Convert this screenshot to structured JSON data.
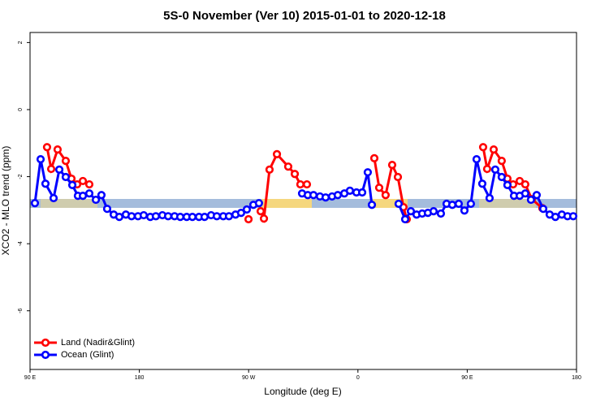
{
  "chart_data": {
    "type": "line",
    "title": "5S-0 November (Ver 10)   2015-01-01 to 2020-12-18",
    "x_label": "Longitude (deg E)",
    "y_label": "XCO2 - MLO trend (ppm)",
    "xlim": [
      90,
      540
    ],
    "xticks": [
      {
        "value": 90,
        "label": "90 E"
      },
      {
        "value": 180,
        "label": "180"
      },
      {
        "value": 270,
        "label": "90 W"
      },
      {
        "value": 360,
        "label": "0"
      },
      {
        "value": 450,
        "label": "90 E"
      },
      {
        "value": 540,
        "label": "180"
      }
    ],
    "ylim": [
      -7.75,
      2.3
    ],
    "yticks": [
      2,
      0,
      -2,
      -4,
      -6
    ],
    "legend": "bottom-left",
    "series": [
      {
        "name": "Land (Nadir&Glint)",
        "color": "#ff0000",
        "x": [
          104.0,
          107.4,
          112.7,
          119.4,
          124.1,
          128.8,
          133.5,
          138.8,
          null,
          269.9,
          null,
          279.9,
          282.6,
          287.2,
          293.3,
          302.6,
          308.0,
          312.6,
          318.0,
          null,
          373.5,
          377.5,
          382.8,
          388.2,
          392.9,
          397.5,
          400.2,
          null,
          463.1,
          466.4,
          471.8,
          478.4,
          483.1,
          487.8,
          493.2,
          497.8,
          503.2,
          511.9
        ],
        "values": [
          -1.12,
          -1.77,
          -1.19,
          -1.53,
          -2.06,
          -2.23,
          -2.13,
          -2.23,
          null,
          -3.27,
          null,
          -3.03,
          -3.25,
          -1.79,
          -1.33,
          -1.7,
          -1.92,
          -2.23,
          -2.23,
          null,
          -1.45,
          -2.33,
          -2.55,
          -1.65,
          -2.01,
          -2.91,
          -3.27,
          null,
          -1.12,
          -1.77,
          -1.19,
          -1.53,
          -2.06,
          -2.23,
          -2.13,
          -2.23,
          -2.67,
          -2.94
        ]
      },
      {
        "name": "Ocean (Glint)",
        "color": "#0000ff",
        "x": [
          94.0,
          98.7,
          102.7,
          109.4,
          114.1,
          119.4,
          124.8,
          129.4,
          133.5,
          138.8,
          144.2,
          148.8,
          153.5,
          158.9,
          163.5,
          168.9,
          173.6,
          178.9,
          183.6,
          189.0,
          193.6,
          199.0,
          203.7,
          209.0,
          213.7,
          219.0,
          223.7,
          229.1,
          233.7,
          239.1,
          243.8,
          249.1,
          253.8,
          259.2,
          263.8,
          268.5,
          273.9,
          278.5,
          null,
          314.0,
          318.7,
          323.4,
          328.7,
          333.4,
          338.7,
          343.4,
          348.8,
          353.4,
          358.8,
          363.5,
          368.1,
          371.5,
          null,
          393.5,
          398.9,
          403.6,
          408.3,
          412.9,
          417.6,
          422.3,
          428.3,
          433.0,
          437.7,
          443.0,
          447.7,
          453.0,
          457.7,
          462.4,
          468.4,
          473.1,
          478.4,
          483.1,
          488.5,
          493.2,
          497.8,
          502.5,
          507.2,
          512.6,
          517.9,
          522.6,
          527.9,
          532.6,
          537.3
        ],
        "values": [
          -2.79,
          -1.48,
          -2.21,
          -2.64,
          -1.79,
          -2.01,
          -2.25,
          -2.57,
          -2.57,
          -2.5,
          -2.69,
          -2.55,
          -2.96,
          -3.13,
          -3.2,
          -3.13,
          -3.18,
          -3.18,
          -3.15,
          -3.2,
          -3.18,
          -3.15,
          -3.18,
          -3.18,
          -3.2,
          -3.2,
          -3.2,
          -3.2,
          -3.2,
          -3.15,
          -3.18,
          -3.18,
          -3.18,
          -3.13,
          -3.08,
          -2.98,
          -2.84,
          -2.79,
          null,
          -2.5,
          -2.55,
          -2.55,
          -2.59,
          -2.62,
          -2.59,
          -2.55,
          -2.5,
          -2.42,
          -2.47,
          -2.47,
          -1.87,
          -2.84,
          null,
          -2.81,
          -3.27,
          -3.03,
          -3.13,
          -3.1,
          -3.08,
          -3.03,
          -3.1,
          -2.81,
          -2.84,
          -2.81,
          -3.01,
          -2.81,
          -1.48,
          -2.21,
          -2.64,
          -1.79,
          -2.01,
          -2.25,
          -2.57,
          -2.57,
          -2.5,
          -2.69,
          -2.55,
          -2.96,
          -3.13,
          -3.2,
          -3.13,
          -3.18,
          -3.18
        ]
      }
    ]
  }
}
